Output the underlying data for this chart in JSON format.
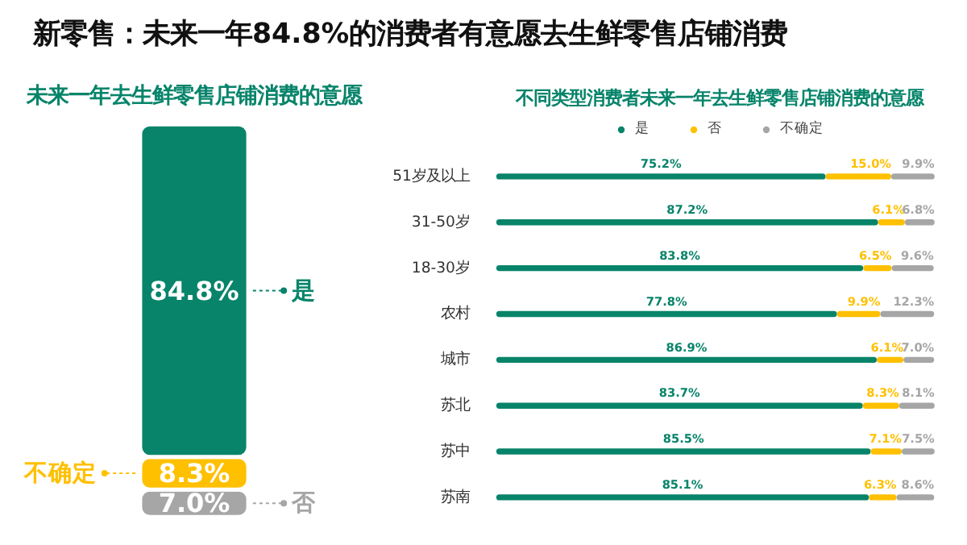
{
  "chart_data": [
    {
      "type": "bar",
      "stacked": true,
      "title": "新零售：未来一年84.8%的消费者有意愿去生鲜零售店铺消费",
      "subtitle": "未来一年去生鲜零售店铺消费的意愿",
      "categories": [
        null
      ],
      "series": [
        {
          "name": "否",
          "color": "#a6a6a6",
          "values": [
            7.0
          ],
          "value_labels": [
            "7.0%"
          ]
        },
        {
          "name": "不确定",
          "color": "#ffc000",
          "values": [
            8.3
          ],
          "value_labels": [
            "8.3%"
          ]
        },
        {
          "name": "是",
          "color": "#07846a",
          "values": [
            84.8
          ],
          "value_labels": [
            "84.8%"
          ]
        }
      ]
    },
    {
      "type": "bar",
      "stacked": true,
      "orientation": "horizontal",
      "title": "不同类型消费者未来一年去生鲜零售店铺消费的意愿",
      "legend": "top",
      "categories": [
        "51岁及以上",
        "31-50岁",
        "18-30岁",
        "农村",
        "城市",
        "苏北",
        "苏中",
        "苏南"
      ],
      "series": [
        {
          "name": "是",
          "color": "#07846a",
          "values": [
            75.2,
            87.2,
            83.8,
            77.8,
            86.9,
            83.7,
            85.5,
            85.1
          ],
          "value_labels": [
            "75.2%",
            "87.2%",
            "83.8%",
            "77.8%",
            "86.9%",
            "83.7%",
            "85.5%",
            "85.1%"
          ]
        },
        {
          "name": "否",
          "color": "#ffc000",
          "values": [
            15.0,
            6.1,
            6.5,
            9.9,
            6.1,
            8.3,
            7.1,
            6.3
          ],
          "value_labels": [
            "15.0%",
            "6.1%",
            "6.5%",
            "9.9%",
            "6.1%",
            "8.3%",
            "7.1%",
            "6.3%"
          ]
        },
        {
          "name": "不确定",
          "color": "#a6a6a6",
          "values": [
            9.9,
            6.8,
            9.6,
            12.3,
            7.0,
            8.1,
            7.5,
            8.6
          ],
          "value_labels": [
            "9.9%",
            "6.8%",
            "9.6%",
            "12.3%",
            "7.0%",
            "8.1%",
            "7.5%",
            "8.6%"
          ]
        }
      ]
    }
  ]
}
